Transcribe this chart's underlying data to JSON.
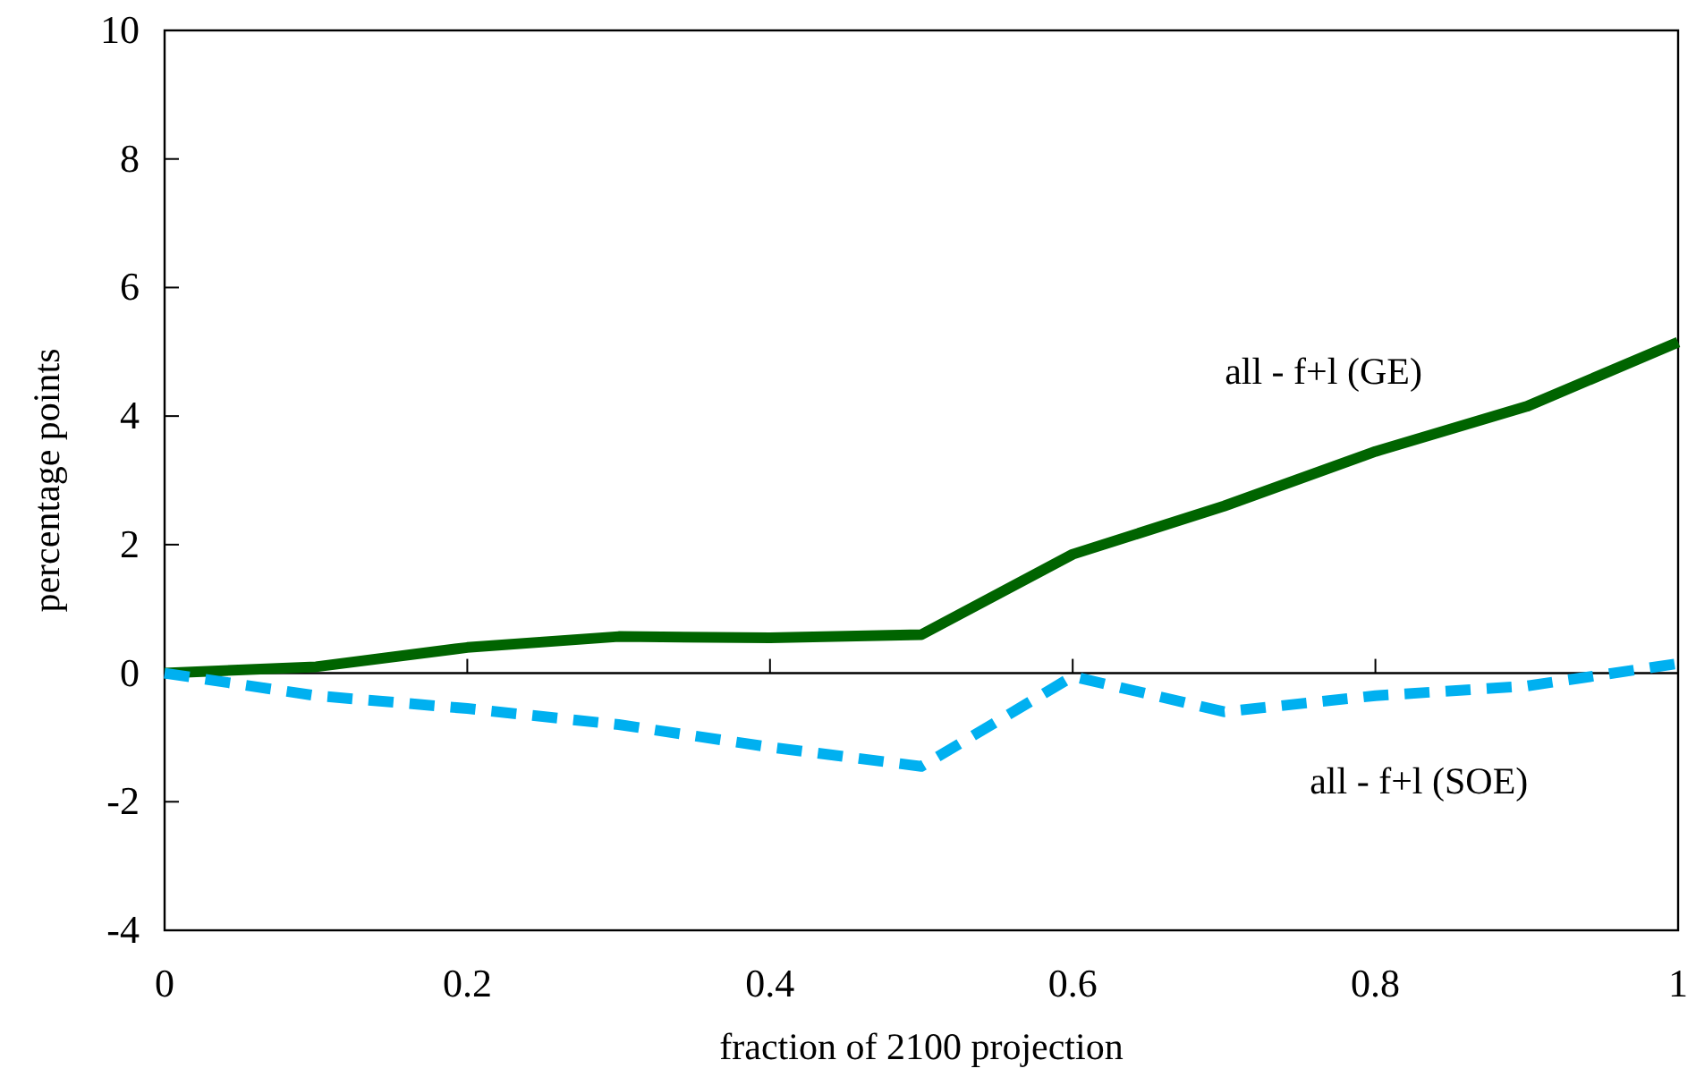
{
  "chart_data": {
    "type": "line",
    "xlabel": "fraction of 2100 projection",
    "ylabel": "percentage points",
    "x": [
      0,
      0.1,
      0.2,
      0.3,
      0.4,
      0.5,
      0.6,
      0.7,
      0.8,
      0.9,
      1
    ],
    "series": [
      {
        "name": "all - f+l (GE)",
        "color": "#006400",
        "line_style": "solid",
        "values": [
          0,
          0.1,
          0.4,
          0.57,
          0.55,
          0.6,
          1.85,
          2.6,
          3.45,
          4.15,
          5.15
        ]
      },
      {
        "name": "all - f+l (SOE)",
        "color": "#00b0f0",
        "line_style": "dashed",
        "values": [
          0,
          -0.35,
          -0.55,
          -0.8,
          -1.15,
          -1.45,
          -0.05,
          -0.6,
          -0.35,
          -0.2,
          0.15
        ]
      }
    ],
    "xlim": [
      0,
      1
    ],
    "xticks": [
      0,
      0.2,
      0.4,
      0.6,
      0.8,
      1
    ],
    "ylim": [
      -4,
      10
    ],
    "yticks": [
      -4,
      -2,
      0,
      2,
      4,
      6,
      8,
      10
    ],
    "marker": "none"
  }
}
